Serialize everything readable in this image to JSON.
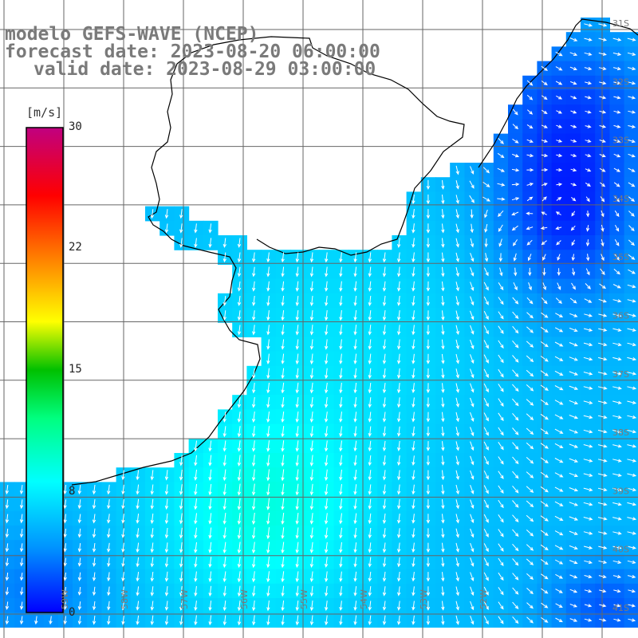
{
  "map": {
    "title_lines": [
      "modelo GEFS-WAVE (NCEP)",
      "forecast date: 2023-08-20 06:00:00",
      "valid date: 2023-08-29 03:00:00"
    ],
    "variable": "wind speed and direction",
    "colorbar": {
      "unit": "[m/s]",
      "ticks": [
        "30",
        "22",
        "15",
        "8",
        "0"
      ],
      "tick_values": [
        30,
        22,
        15,
        8,
        0
      ],
      "range": [
        0,
        30
      ],
      "colors": [
        "#0000ff",
        "#0090ff",
        "#00ffff",
        "#00ff80",
        "#00c000",
        "#ffff00",
        "#ff8000",
        "#ff0000",
        "#c00080"
      ]
    },
    "lat_labels": [
      "31S",
      "32S",
      "33S",
      "34S",
      "35S",
      "36S",
      "37S",
      "38S",
      "39S",
      "40S",
      "41S"
    ],
    "lon_labels": [
      "59W",
      "58W",
      "57W",
      "56W",
      "55W",
      "54W",
      "53W",
      "52W"
    ]
  }
}
